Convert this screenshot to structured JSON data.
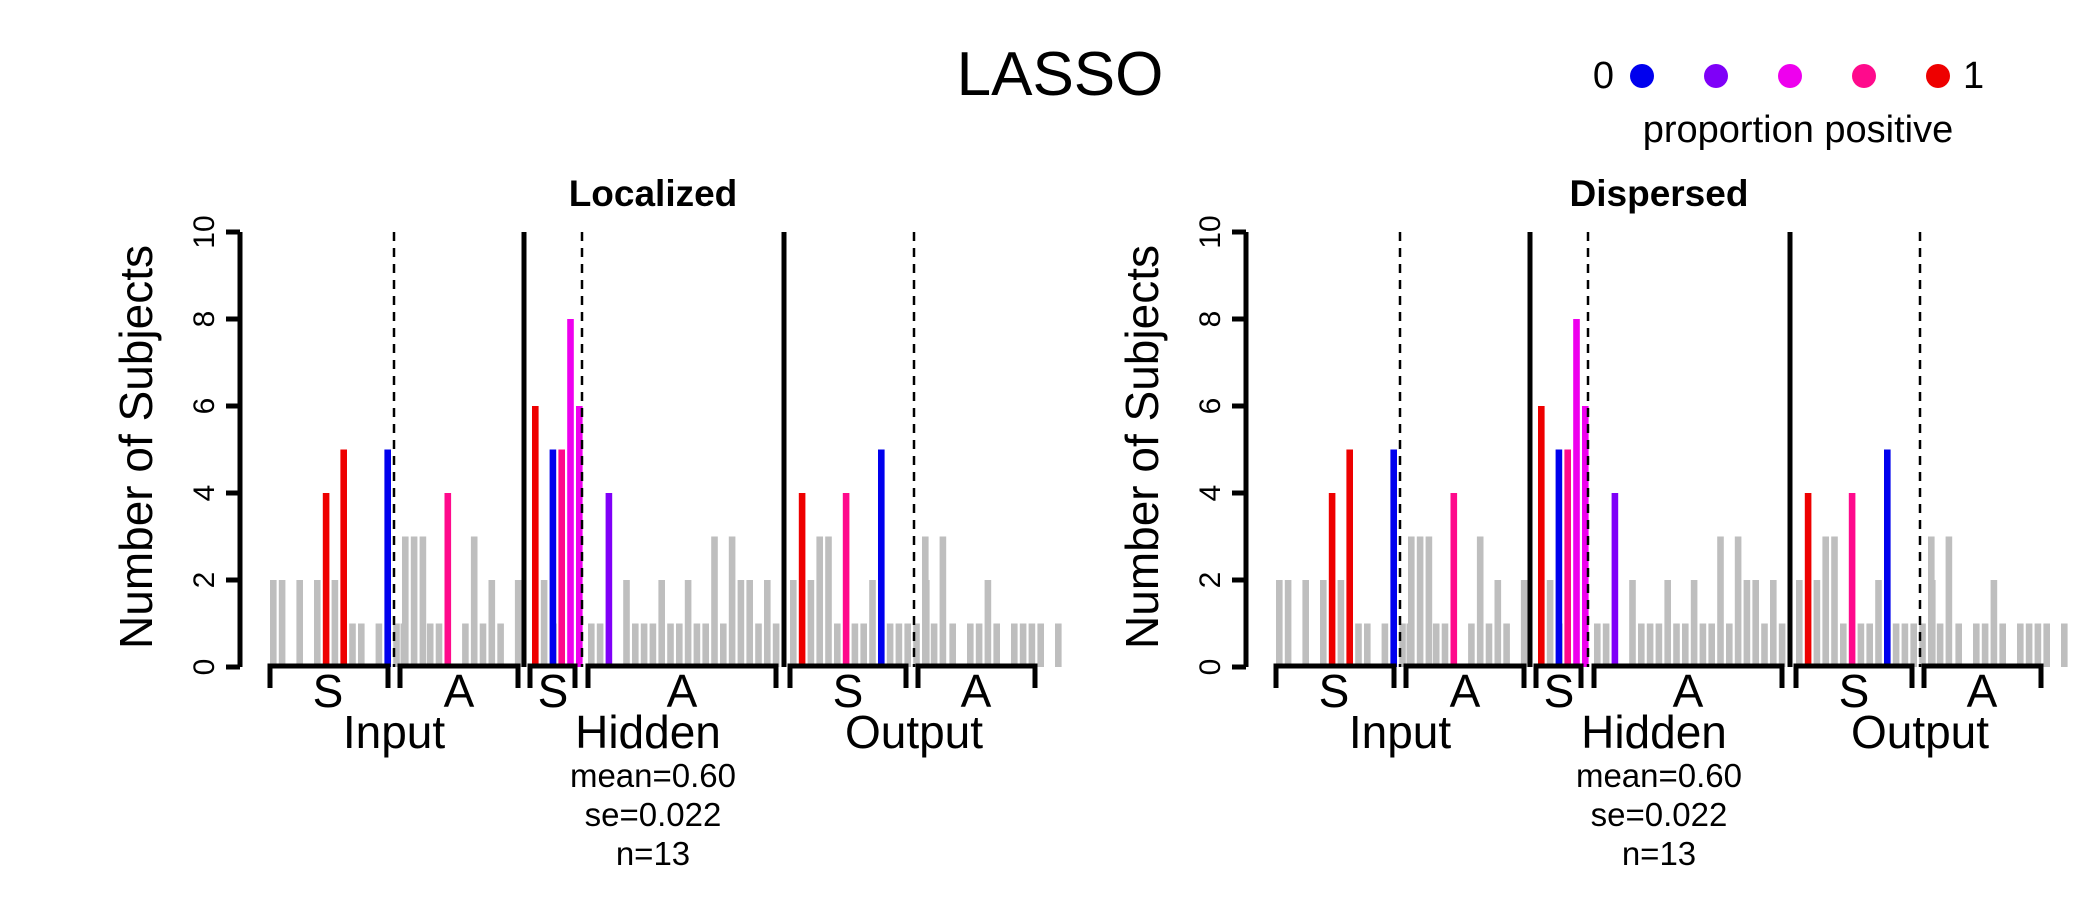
{
  "main_title": "LASSO",
  "legend": {
    "title": "proportion positive",
    "low_label": "0",
    "high_label": "1",
    "colors": [
      "#0000ee",
      "#7f00f8",
      "#ee00ee",
      "#ff0a8c",
      "#ee0000"
    ]
  },
  "colors": {
    "neutral_bar": "#bebebe"
  },
  "panels": [
    {
      "title": "Localized",
      "ylabel": "Number of Subjects",
      "stats": [
        "mean=0.60",
        "se=0.022",
        "n=13"
      ]
    },
    {
      "title": "Dispersed",
      "ylabel": "Number of Subjects",
      "stats": [
        "mean=0.60",
        "se=0.022",
        "n=13"
      ]
    }
  ],
  "chart_data": {
    "type": "bar",
    "ylim": [
      0,
      10
    ],
    "y_ticks": [
      0,
      2,
      4,
      6,
      8,
      10
    ],
    "group_labels": [
      "Input",
      "Hidden",
      "Output"
    ],
    "subgroup_labels": [
      "S",
      "A",
      "S",
      "A",
      "S",
      "A"
    ],
    "legend_placement": "top-right",
    "grid": false,
    "segments": [
      {
        "group": "Input",
        "type": "S",
        "bars": [
          {
            "v": 2,
            "c": "grey"
          },
          {
            "v": 2,
            "c": "grey"
          },
          {
            "v": 0,
            "c": "grey"
          },
          {
            "v": 2,
            "c": "grey"
          },
          {
            "v": 0,
            "c": "grey"
          },
          {
            "v": 2,
            "c": "grey"
          },
          {
            "v": 4,
            "c": "red"
          },
          {
            "v": 2,
            "c": "grey"
          },
          {
            "v": 5,
            "c": "red"
          },
          {
            "v": 1,
            "c": "grey"
          },
          {
            "v": 1,
            "c": "grey"
          },
          {
            "v": 0,
            "c": "grey"
          },
          {
            "v": 1,
            "c": "grey"
          },
          {
            "v": 5,
            "c": "blue"
          },
          {
            "v": 1,
            "c": "grey"
          },
          {
            "v": 3,
            "c": "grey"
          },
          {
            "v": 3,
            "c": "grey"
          },
          {
            "v": 3,
            "c": "grey"
          }
        ]
      },
      {
        "group": "Input",
        "type": "A",
        "bars": [
          {
            "v": 1,
            "c": "grey"
          },
          {
            "v": 0,
            "c": "grey"
          },
          {
            "v": 0,
            "c": "grey"
          },
          {
            "v": 1,
            "c": "grey"
          },
          {
            "v": 1,
            "c": "grey"
          },
          {
            "v": 4,
            "c": "pink"
          },
          {
            "v": 0,
            "c": "grey"
          },
          {
            "v": 1,
            "c": "grey"
          },
          {
            "v": 3,
            "c": "grey"
          },
          {
            "v": 1,
            "c": "grey"
          },
          {
            "v": 2,
            "c": "grey"
          },
          {
            "v": 1,
            "c": "grey"
          },
          {
            "v": 0,
            "c": "grey"
          },
          {
            "v": 2,
            "c": "grey"
          },
          {
            "v": 0,
            "c": "grey"
          },
          {
            "v": 0,
            "c": "grey"
          },
          {
            "v": 0,
            "c": "grey"
          },
          {
            "v": 1,
            "c": "grey"
          }
        ]
      },
      {
        "group": "Hidden",
        "type": "S",
        "bars": [
          {
            "v": 6,
            "c": "red"
          },
          {
            "v": 2,
            "c": "grey"
          },
          {
            "v": 5,
            "c": "blue"
          },
          {
            "v": 5,
            "c": "pink"
          },
          {
            "v": 8,
            "c": "magenta"
          },
          {
            "v": 6,
            "c": "magenta"
          }
        ]
      },
      {
        "group": "Hidden",
        "type": "A",
        "bars": [
          {
            "v": 1,
            "c": "grey"
          },
          {
            "v": 1,
            "c": "grey"
          },
          {
            "v": 4,
            "c": "purple"
          },
          {
            "v": 0,
            "c": "grey"
          },
          {
            "v": 2,
            "c": "grey"
          },
          {
            "v": 1,
            "c": "grey"
          },
          {
            "v": 1,
            "c": "grey"
          },
          {
            "v": 1,
            "c": "grey"
          },
          {
            "v": 2,
            "c": "grey"
          },
          {
            "v": 1,
            "c": "grey"
          },
          {
            "v": 1,
            "c": "grey"
          },
          {
            "v": 2,
            "c": "grey"
          },
          {
            "v": 1,
            "c": "grey"
          },
          {
            "v": 1,
            "c": "grey"
          },
          {
            "v": 3,
            "c": "grey"
          },
          {
            "v": 1,
            "c": "grey"
          },
          {
            "v": 3,
            "c": "grey"
          },
          {
            "v": 2,
            "c": "grey"
          },
          {
            "v": 2,
            "c": "grey"
          },
          {
            "v": 1,
            "c": "grey"
          },
          {
            "v": 2,
            "c": "grey"
          },
          {
            "v": 1,
            "c": "grey"
          }
        ]
      },
      {
        "group": "Output",
        "type": "S",
        "bars": [
          {
            "v": 2,
            "c": "grey"
          },
          {
            "v": 4,
            "c": "red"
          },
          {
            "v": 2,
            "c": "grey"
          },
          {
            "v": 3,
            "c": "grey"
          },
          {
            "v": 3,
            "c": "grey"
          },
          {
            "v": 1,
            "c": "grey"
          },
          {
            "v": 4,
            "c": "pink"
          },
          {
            "v": 1,
            "c": "grey"
          },
          {
            "v": 1,
            "c": "grey"
          },
          {
            "v": 2,
            "c": "grey"
          },
          {
            "v": 5,
            "c": "blue"
          },
          {
            "v": 1,
            "c": "grey"
          },
          {
            "v": 1,
            "c": "grey"
          },
          {
            "v": 1,
            "c": "grey"
          },
          {
            "v": 1,
            "c": "grey"
          },
          {
            "v": 3,
            "c": "grey"
          },
          {
            "v": 1,
            "c": "grey"
          },
          {
            "v": 3,
            "c": "grey"
          }
        ]
      },
      {
        "group": "Output",
        "type": "A",
        "bars": [
          {
            "v": 2,
            "c": "grey"
          },
          {
            "v": 0,
            "c": "grey"
          },
          {
            "v": 0,
            "c": "grey"
          },
          {
            "v": 1,
            "c": "grey"
          },
          {
            "v": 0,
            "c": "grey"
          },
          {
            "v": 1,
            "c": "grey"
          },
          {
            "v": 1,
            "c": "grey"
          },
          {
            "v": 2,
            "c": "grey"
          },
          {
            "v": 1,
            "c": "grey"
          },
          {
            "v": 0,
            "c": "grey"
          },
          {
            "v": 1,
            "c": "grey"
          },
          {
            "v": 1,
            "c": "grey"
          },
          {
            "v": 1,
            "c": "grey"
          },
          {
            "v": 1,
            "c": "grey"
          },
          {
            "v": 0,
            "c": "grey"
          },
          {
            "v": 1,
            "c": "grey"
          }
        ]
      }
    ]
  }
}
